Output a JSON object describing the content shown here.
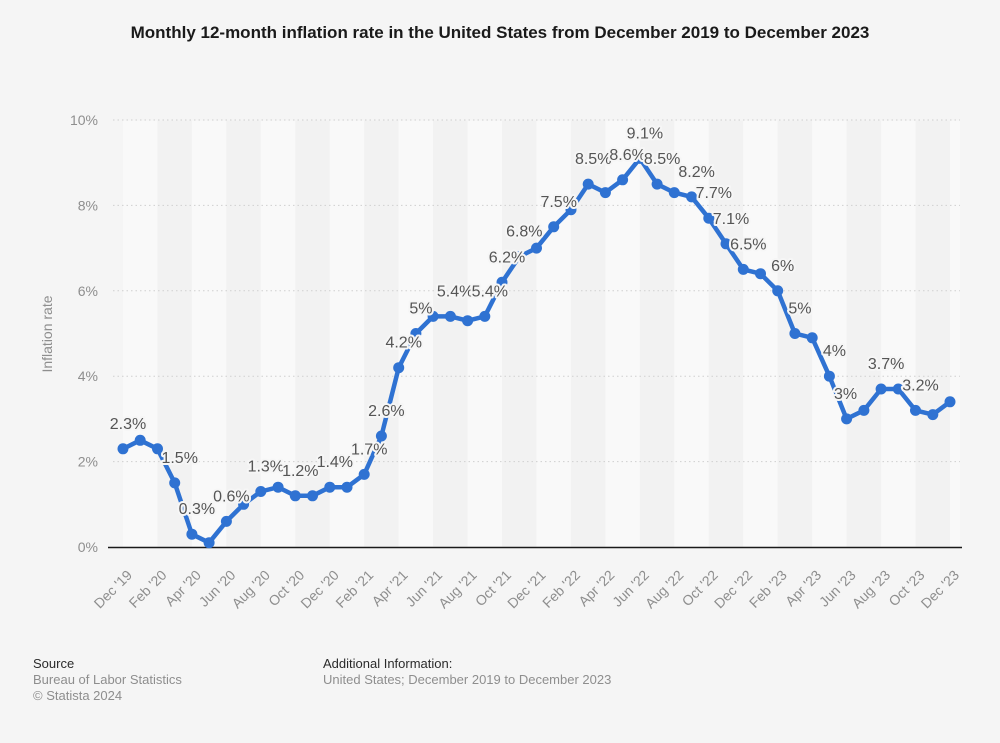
{
  "title": "Monthly 12-month inflation rate in the United States from December 2019 to December 2023",
  "y_axis": {
    "title": "Inflation rate",
    "ticks": [
      "0%",
      "2%",
      "4%",
      "6%",
      "8%",
      "10%"
    ]
  },
  "footer": {
    "source_heading": "Source",
    "source_name": "Bureau of Labor Statistics",
    "copyright": "© Statista 2024",
    "additional_heading": "Additional Information:",
    "additional_text": "United States; December 2019 to December 2023"
  },
  "colors": {
    "background": "#f5f5f5",
    "band_light": "#f9f9f9",
    "band_dark": "#f2f2f2",
    "gridline": "#cfcfcf",
    "axis_line": "#1a1a1a",
    "line": "#2f72d2",
    "point_label": "#555555",
    "tick_label": "#8e8e8e",
    "title_text": "#1a1a1a"
  },
  "chart_data": {
    "type": "line",
    "title": "Monthly 12-month inflation rate in the United States from December 2019 to December 2023",
    "xlabel": "",
    "ylabel": "Inflation rate",
    "ylim": [
      0,
      10
    ],
    "y_tick_step": 2,
    "grid": "horizontal-dotted",
    "legend": "none",
    "series_name": "Inflation rate",
    "x": [
      "Dec '19",
      "Jan '20",
      "Feb '20",
      "Mar '20",
      "Apr '20",
      "May '20",
      "Jun '20",
      "Jul '20",
      "Aug '20",
      "Sep '20",
      "Oct '20",
      "Nov '20",
      "Dec '20",
      "Jan '21",
      "Feb '21",
      "Mar '21",
      "Apr '21",
      "May '21",
      "Jun '21",
      "Jul '21",
      "Aug '21",
      "Sep '21",
      "Oct '21",
      "Nov '21",
      "Dec '21",
      "Jan '22",
      "Feb '22",
      "Mar '22",
      "Apr '22",
      "May '22",
      "Jun '22",
      "Jul '22",
      "Aug '22",
      "Sep '22",
      "Oct '22",
      "Nov '22",
      "Dec '22",
      "Jan '23",
      "Feb '23",
      "Mar '23",
      "Apr '23",
      "May '23",
      "Jun '23",
      "Jul '23",
      "Aug '23",
      "Sep '23",
      "Oct '23",
      "Nov '23",
      "Dec '23"
    ],
    "values": [
      2.3,
      2.5,
      2.3,
      1.5,
      0.3,
      0.1,
      0.6,
      1.0,
      1.3,
      1.4,
      1.2,
      1.2,
      1.4,
      1.4,
      1.7,
      2.6,
      4.2,
      5.0,
      5.4,
      5.4,
      5.3,
      5.4,
      6.2,
      6.8,
      7.0,
      7.5,
      7.9,
      8.5,
      8.3,
      8.6,
      9.1,
      8.5,
      8.3,
      8.2,
      7.7,
      7.1,
      6.5,
      6.4,
      6.0,
      5.0,
      4.9,
      4.0,
      3.0,
      3.2,
      3.7,
      3.7,
      3.2,
      3.1,
      3.4
    ],
    "point_labels": [
      "2.3%",
      null,
      null,
      "1.5%",
      "0.3%",
      null,
      "0.6%",
      null,
      "1.3%",
      null,
      "1.2%",
      null,
      "1.4%",
      null,
      "1.7%",
      "2.6%",
      "4.2%",
      "5%",
      "5.4%",
      null,
      null,
      "5.4%",
      "6.2%",
      "6.8%",
      null,
      "7.5%",
      null,
      "8.5%",
      null,
      "8.6%",
      "9.1%",
      "8.5%",
      null,
      "8.2%",
      "7.7%",
      "7.1%",
      "6.5%",
      null,
      "6%",
      "5%",
      null,
      "4%",
      "3%",
      null,
      "3.7%",
      null,
      "3.2%",
      null,
      null
    ],
    "x_tick_every": 2,
    "x_tick_labels": [
      "Dec '19",
      "Feb '20",
      "Apr '20",
      "Jun '20",
      "Aug '20",
      "Oct '20",
      "Dec '20",
      "Feb '21",
      "Apr '21",
      "Jun '21",
      "Aug '21",
      "Oct '21",
      "Dec '21",
      "Feb '22",
      "Apr '22",
      "Jun '22",
      "Aug '22",
      "Oct '22",
      "Dec '22",
      "Feb '23",
      "Apr '23",
      "Jun '23",
      "Aug '23",
      "Oct '23",
      "Dec '23"
    ]
  }
}
